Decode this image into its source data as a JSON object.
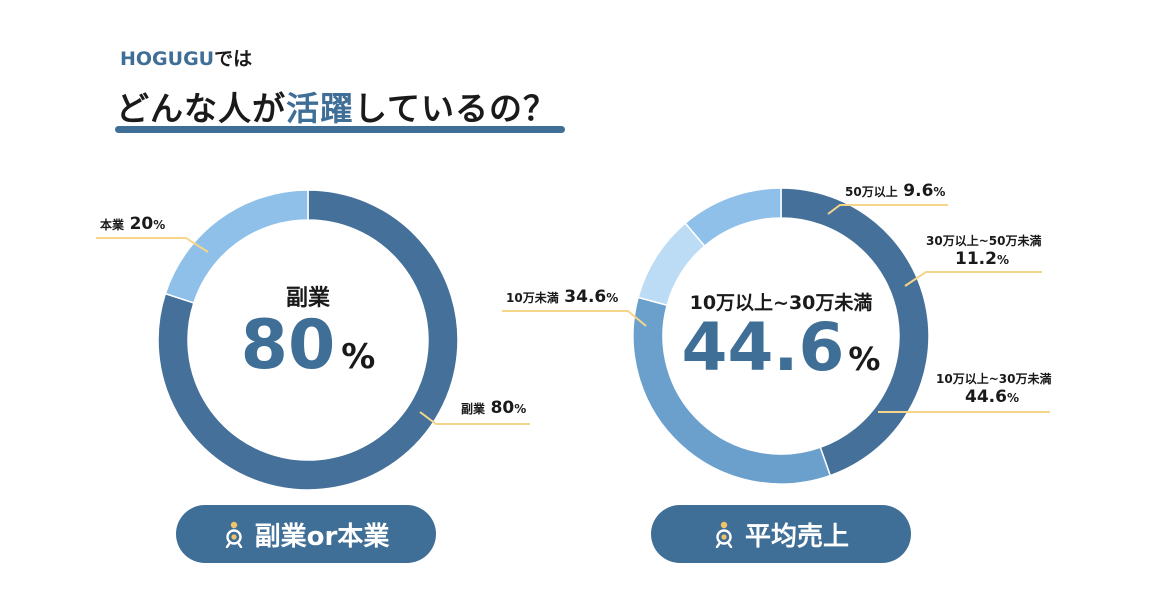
{
  "header": {
    "brand": "HOGUGU",
    "brand_suffix": "では",
    "headline_pre": "どんな人が",
    "headline_highlight": "活躍",
    "headline_post": "しているの？"
  },
  "colors": {
    "accent": "#3f6e96",
    "underline": "#3f6e96",
    "leader": "#f5d58a",
    "pill_icon": "#f0c46a"
  },
  "chart_data": [
    {
      "type": "pie",
      "variant": "donut",
      "categories": [
        "副業",
        "本業"
      ],
      "values": [
        80,
        20
      ],
      "unit": "%",
      "colors": [
        "#44709a",
        "#8fc0e9"
      ],
      "center": {
        "label": "副業",
        "value": "80",
        "unit": "%"
      },
      "labels": [
        {
          "name": "副業",
          "value": "80",
          "unit": "%"
        },
        {
          "name": "本業",
          "value": "20",
          "unit": "%"
        }
      ],
      "button": "副業or本業",
      "button_icon": "person-icon"
    },
    {
      "type": "pie",
      "variant": "donut",
      "categories": [
        "10万以上~30万未満",
        "10万未満",
        "50万以上",
        "30万以上~50万未満"
      ],
      "values": [
        44.6,
        34.6,
        9.6,
        11.2
      ],
      "unit": "%",
      "colors": [
        "#44709a",
        "#6b9fcc",
        "#bcdcf5",
        "#8fc0e9"
      ],
      "center": {
        "label": "10万以上~30万未満",
        "value": "44.6",
        "unit": "%"
      },
      "labels": [
        {
          "name": "50万以上",
          "value": "9.6",
          "unit": "%"
        },
        {
          "name": "30万以上~50万未満",
          "value": "11.2",
          "unit": "%"
        },
        {
          "name": "10万以上~30万未満",
          "value": "44.6",
          "unit": "%"
        },
        {
          "name": "10万未満",
          "value": "34.6",
          "unit": "%"
        }
      ],
      "button": "平均売上",
      "button_icon": "person-icon"
    }
  ]
}
